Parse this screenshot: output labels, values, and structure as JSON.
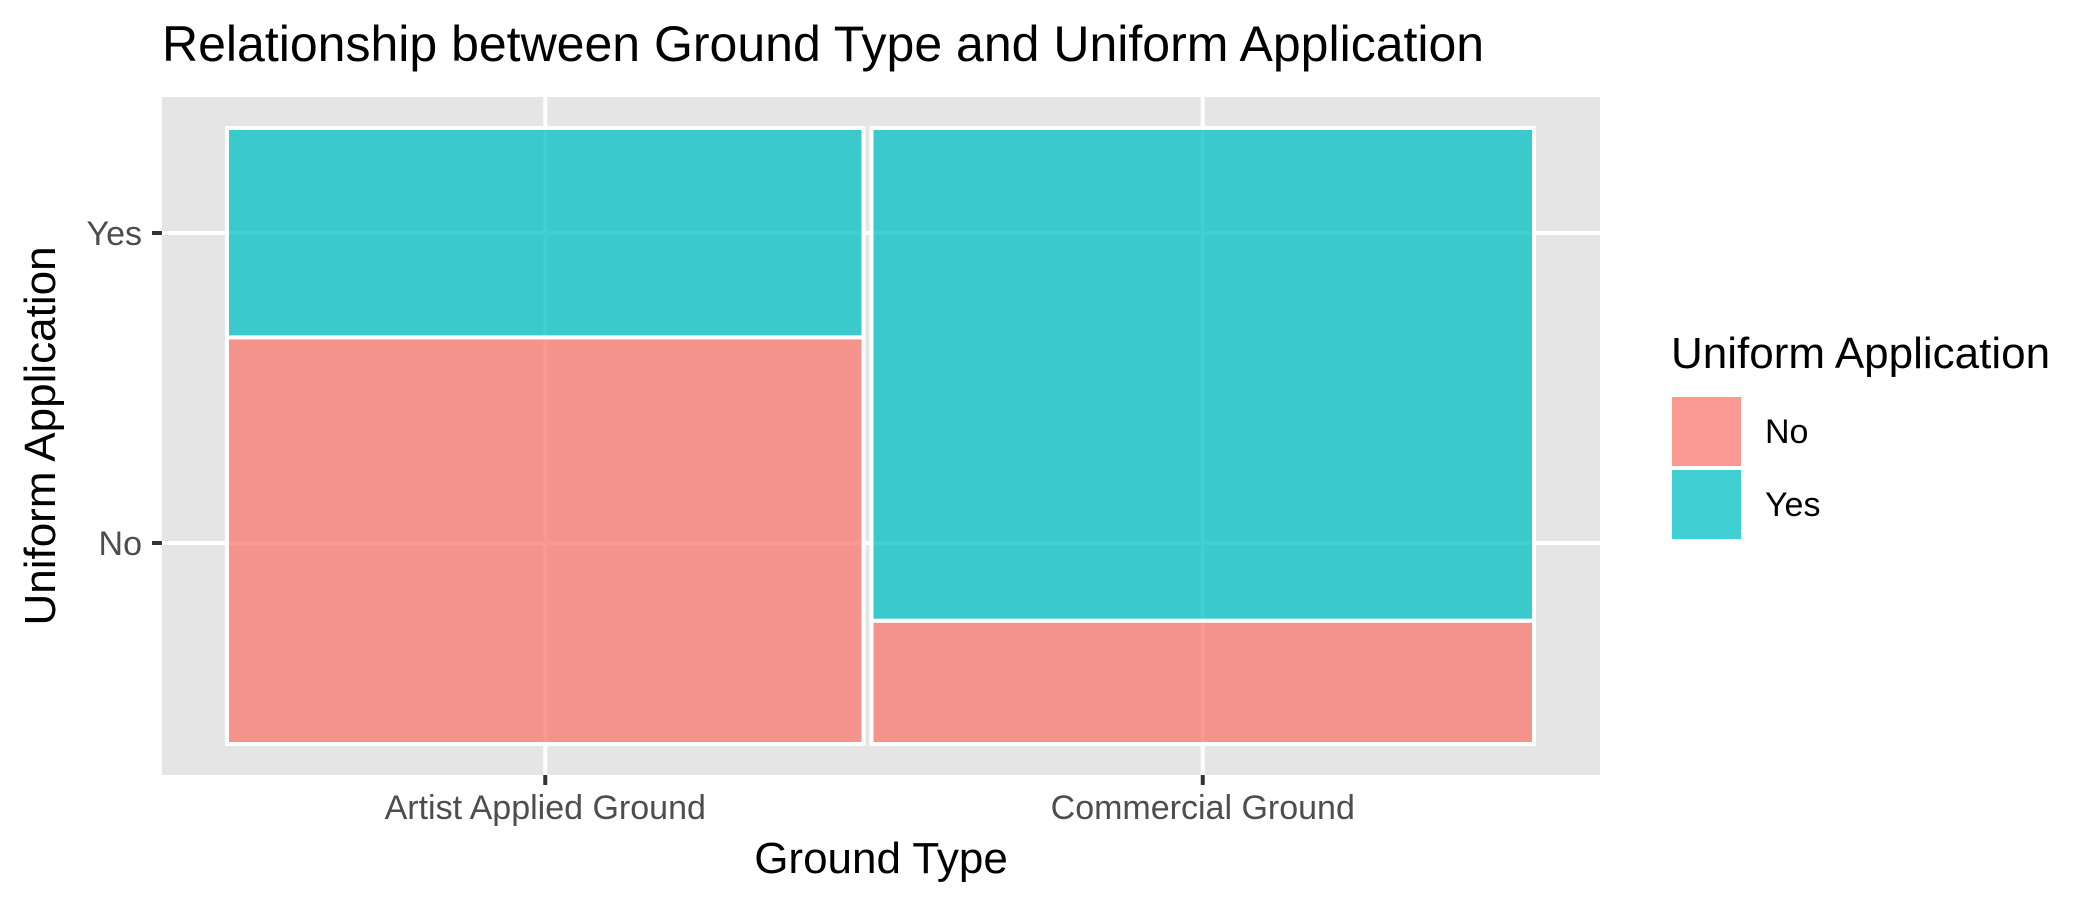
{
  "chart_data": {
    "type": "mosaic",
    "title": "Relationship between Ground Type and Uniform Application",
    "xlabel": "Ground Type",
    "ylabel": "Uniform Application",
    "categories": [
      "Artist Applied Ground",
      "Commercial Ground"
    ],
    "category_shares": [
      0.49,
      0.51
    ],
    "y_ticks": [
      "No",
      "Yes"
    ],
    "series": [
      {
        "name": "No",
        "color": "#F8766D",
        "values": [
          0.66,
          0.2
        ]
      },
      {
        "name": "Yes",
        "color": "#00BFC4",
        "values": [
          0.34,
          0.8
        ]
      }
    ],
    "legend": {
      "title": "Uniform Application",
      "position": "right"
    },
    "grid": true,
    "panel_background": "#e5e5e5"
  }
}
